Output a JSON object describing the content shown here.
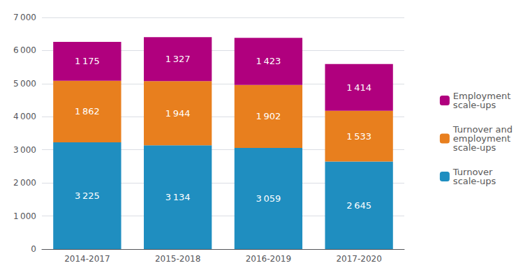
{
  "chart_data": {
    "type": "bar",
    "stacked": true,
    "data_labels": true,
    "categories": [
      "2014-2017",
      "2015-2018",
      "2016-2019",
      "2017-2020"
    ],
    "series": [
      {
        "name": "Turnover\nscale-ups",
        "color": "#1f8ec0",
        "values": [
          3225,
          3134,
          3059,
          2645
        ],
        "value_labels": [
          "3 225",
          "3 134",
          "3 059",
          "2 645"
        ]
      },
      {
        "name": "Turnover and\nemployment\nscale-ups",
        "color": "#e87f1e",
        "values": [
          1862,
          1944,
          1902,
          1533
        ],
        "value_labels": [
          "1 862",
          "1 944",
          "1 902",
          "1 533"
        ]
      },
      {
        "name": "Employment\nscale-ups",
        "color": "#b0007e",
        "values": [
          1175,
          1327,
          1423,
          1414
        ],
        "value_labels": [
          "1 175",
          "1 327",
          "1 423",
          "1 414"
        ]
      }
    ],
    "ylim": [
      0,
      7000
    ],
    "yticks": [
      0,
      {
        "value": 1000,
        "label": "1 000"
      },
      {
        "value": 2000,
        "label": "2 000"
      },
      {
        "value": 3000,
        "label": "3 000"
      },
      {
        "value": 4000,
        "label": "4 000"
      },
      {
        "value": 5000,
        "label": "5 000"
      },
      {
        "value": 6000,
        "label": "6 000"
      },
      {
        "value": 7000,
        "label": "7 000"
      }
    ],
    "grid": true,
    "legend": "right"
  }
}
